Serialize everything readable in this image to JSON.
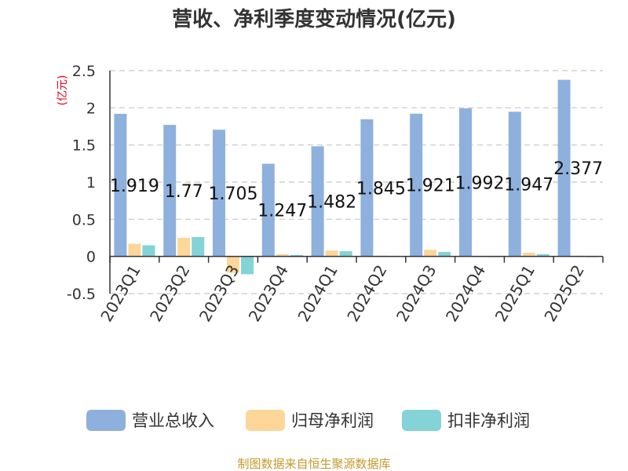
{
  "chart_data": {
    "type": "bar",
    "title": "营收、净利季度变动情况(亿元)",
    "unit_label": "(亿元)",
    "categories": [
      "2023Q1",
      "2023Q2",
      "2023Q3",
      "2023Q4",
      "2024Q1",
      "2024Q2",
      "2024Q3",
      "2024Q4",
      "2025Q1",
      "2025Q2"
    ],
    "series": [
      {
        "name": "营业总收入",
        "color": "#8eb0dd",
        "values": [
          1.919,
          1.77,
          1.705,
          1.247,
          1.482,
          1.845,
          1.921,
          1.992,
          1.947,
          2.377
        ]
      },
      {
        "name": "归母净利润",
        "color": "#fdd699",
        "values": [
          0.17,
          0.25,
          -0.22,
          0.03,
          0.08,
          0.01,
          0.09,
          0.0,
          0.05,
          0.01
        ]
      },
      {
        "name": "扣非净利润",
        "color": "#84d3d6",
        "values": [
          0.15,
          0.26,
          -0.24,
          0.02,
          0.07,
          0.0,
          0.06,
          -0.01,
          0.03,
          -0.01
        ]
      }
    ],
    "data_labels": [
      "1.919",
      "1.77",
      "1.705",
      "1.247",
      "1.482",
      "1.845",
      "1.921",
      "1.992",
      "1.947",
      "2.377"
    ],
    "ylim": [
      -0.5,
      2.5
    ],
    "yticks": [
      "2.5",
      "2",
      "1.5",
      "1",
      "0.5",
      "0",
      "-0.5"
    ],
    "grid": true,
    "legend_position": "bottom"
  },
  "source": "制图数据来自恒生聚源数据库"
}
